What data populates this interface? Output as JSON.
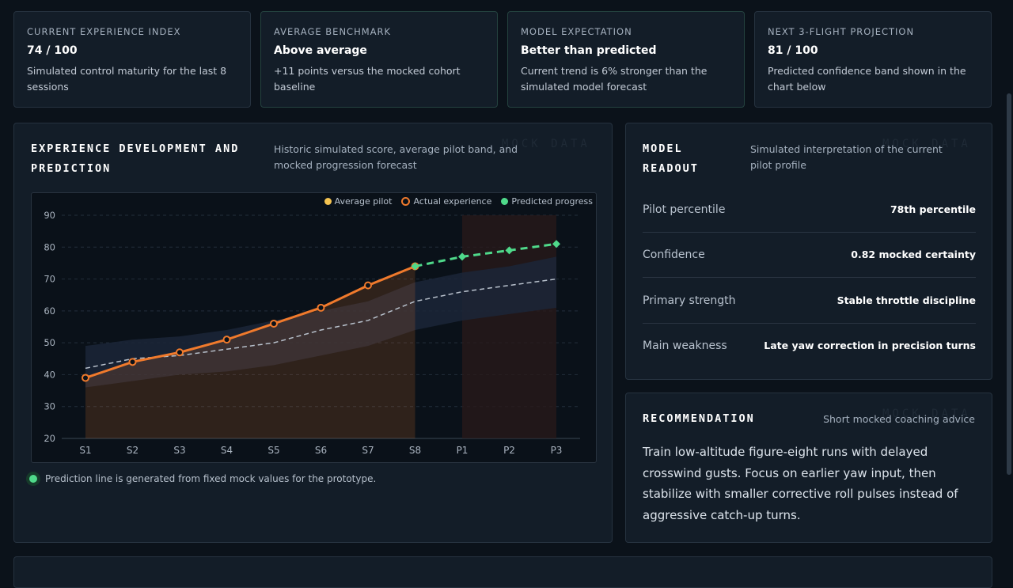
{
  "stats": [
    {
      "label": "CURRENT EXPERIENCE INDEX",
      "value": "74 / 100",
      "desc": "Simulated control maturity for the last 8 sessions"
    },
    {
      "label": "AVERAGE BENCHMARK",
      "value": "Above average",
      "desc": "+11 points versus the mocked cohort baseline"
    },
    {
      "label": "MODEL EXPECTATION",
      "value": "Better than predicted",
      "desc": "Current trend is 6% stronger than the simulated model forecast"
    },
    {
      "label": "NEXT 3-FLIGHT PROJECTION",
      "value": "81 / 100",
      "desc": "Predicted confidence band shown in the chart below"
    }
  ],
  "chart_panel": {
    "title_line1": "EXPERIENCE DEVELOPMENT AND",
    "title_line2": "PREDICTION",
    "subtitle": "Historic simulated score, average pilot band, and mocked progression forecast",
    "watermark": "MOCK DATA",
    "footnote": "Prediction line is generated from fixed mock values for the prototype."
  },
  "readout": {
    "title_line1": "MODEL",
    "title_line2": "READOUT",
    "subtitle": "Simulated interpretation of the current pilot profile",
    "watermark": "MOCK DATA",
    "rows": [
      {
        "label": "Pilot percentile",
        "value": "78th percentile"
      },
      {
        "label": "Confidence",
        "value": "0.82 mocked certainty"
      },
      {
        "label": "Primary strength",
        "value": "Stable throttle discipline"
      },
      {
        "label": "Main weakness",
        "value": "Late yaw correction in precision turns"
      }
    ]
  },
  "recommendation": {
    "title": "RECOMMENDATION",
    "subtitle": "Short mocked coaching advice",
    "watermark": "MOCK DATA",
    "text": "Train low-altitude figure-eight runs with delayed crosswind gusts. Focus on earlier yaw input, then stabilize with smaller corrective roll pulses instead of aggressive catch-up turns."
  },
  "colors": {
    "average": "#f5c451",
    "actual": "#f07a2c",
    "predicted": "#4fd98a",
    "band": "#1a2434"
  },
  "chart_data": {
    "type": "line",
    "categories": [
      "S1",
      "S2",
      "S3",
      "S4",
      "S5",
      "S6",
      "S7",
      "S8",
      "P1",
      "P2",
      "P3"
    ],
    "ylim": [
      20,
      90
    ],
    "yticks": [
      20,
      30,
      40,
      50,
      60,
      70,
      80,
      90
    ],
    "grid": true,
    "legend_position": "top-right",
    "series": [
      {
        "name": "Average pilot",
        "values": [
          42,
          45,
          46,
          48,
          50,
          54,
          57,
          63,
          66,
          68,
          70
        ],
        "band_low": [
          36,
          38,
          40,
          41,
          43,
          46,
          49,
          54,
          57,
          59,
          61
        ],
        "band_high": [
          49,
          51,
          52,
          54,
          57,
          60,
          63,
          69,
          72,
          74,
          77
        ]
      },
      {
        "name": "Actual experience",
        "values": [
          39,
          44,
          47,
          51,
          56,
          61,
          68,
          74,
          null,
          null,
          null
        ]
      },
      {
        "name": "Predicted progress",
        "values": [
          null,
          null,
          null,
          null,
          null,
          null,
          null,
          74,
          77,
          79,
          81
        ]
      }
    ]
  }
}
